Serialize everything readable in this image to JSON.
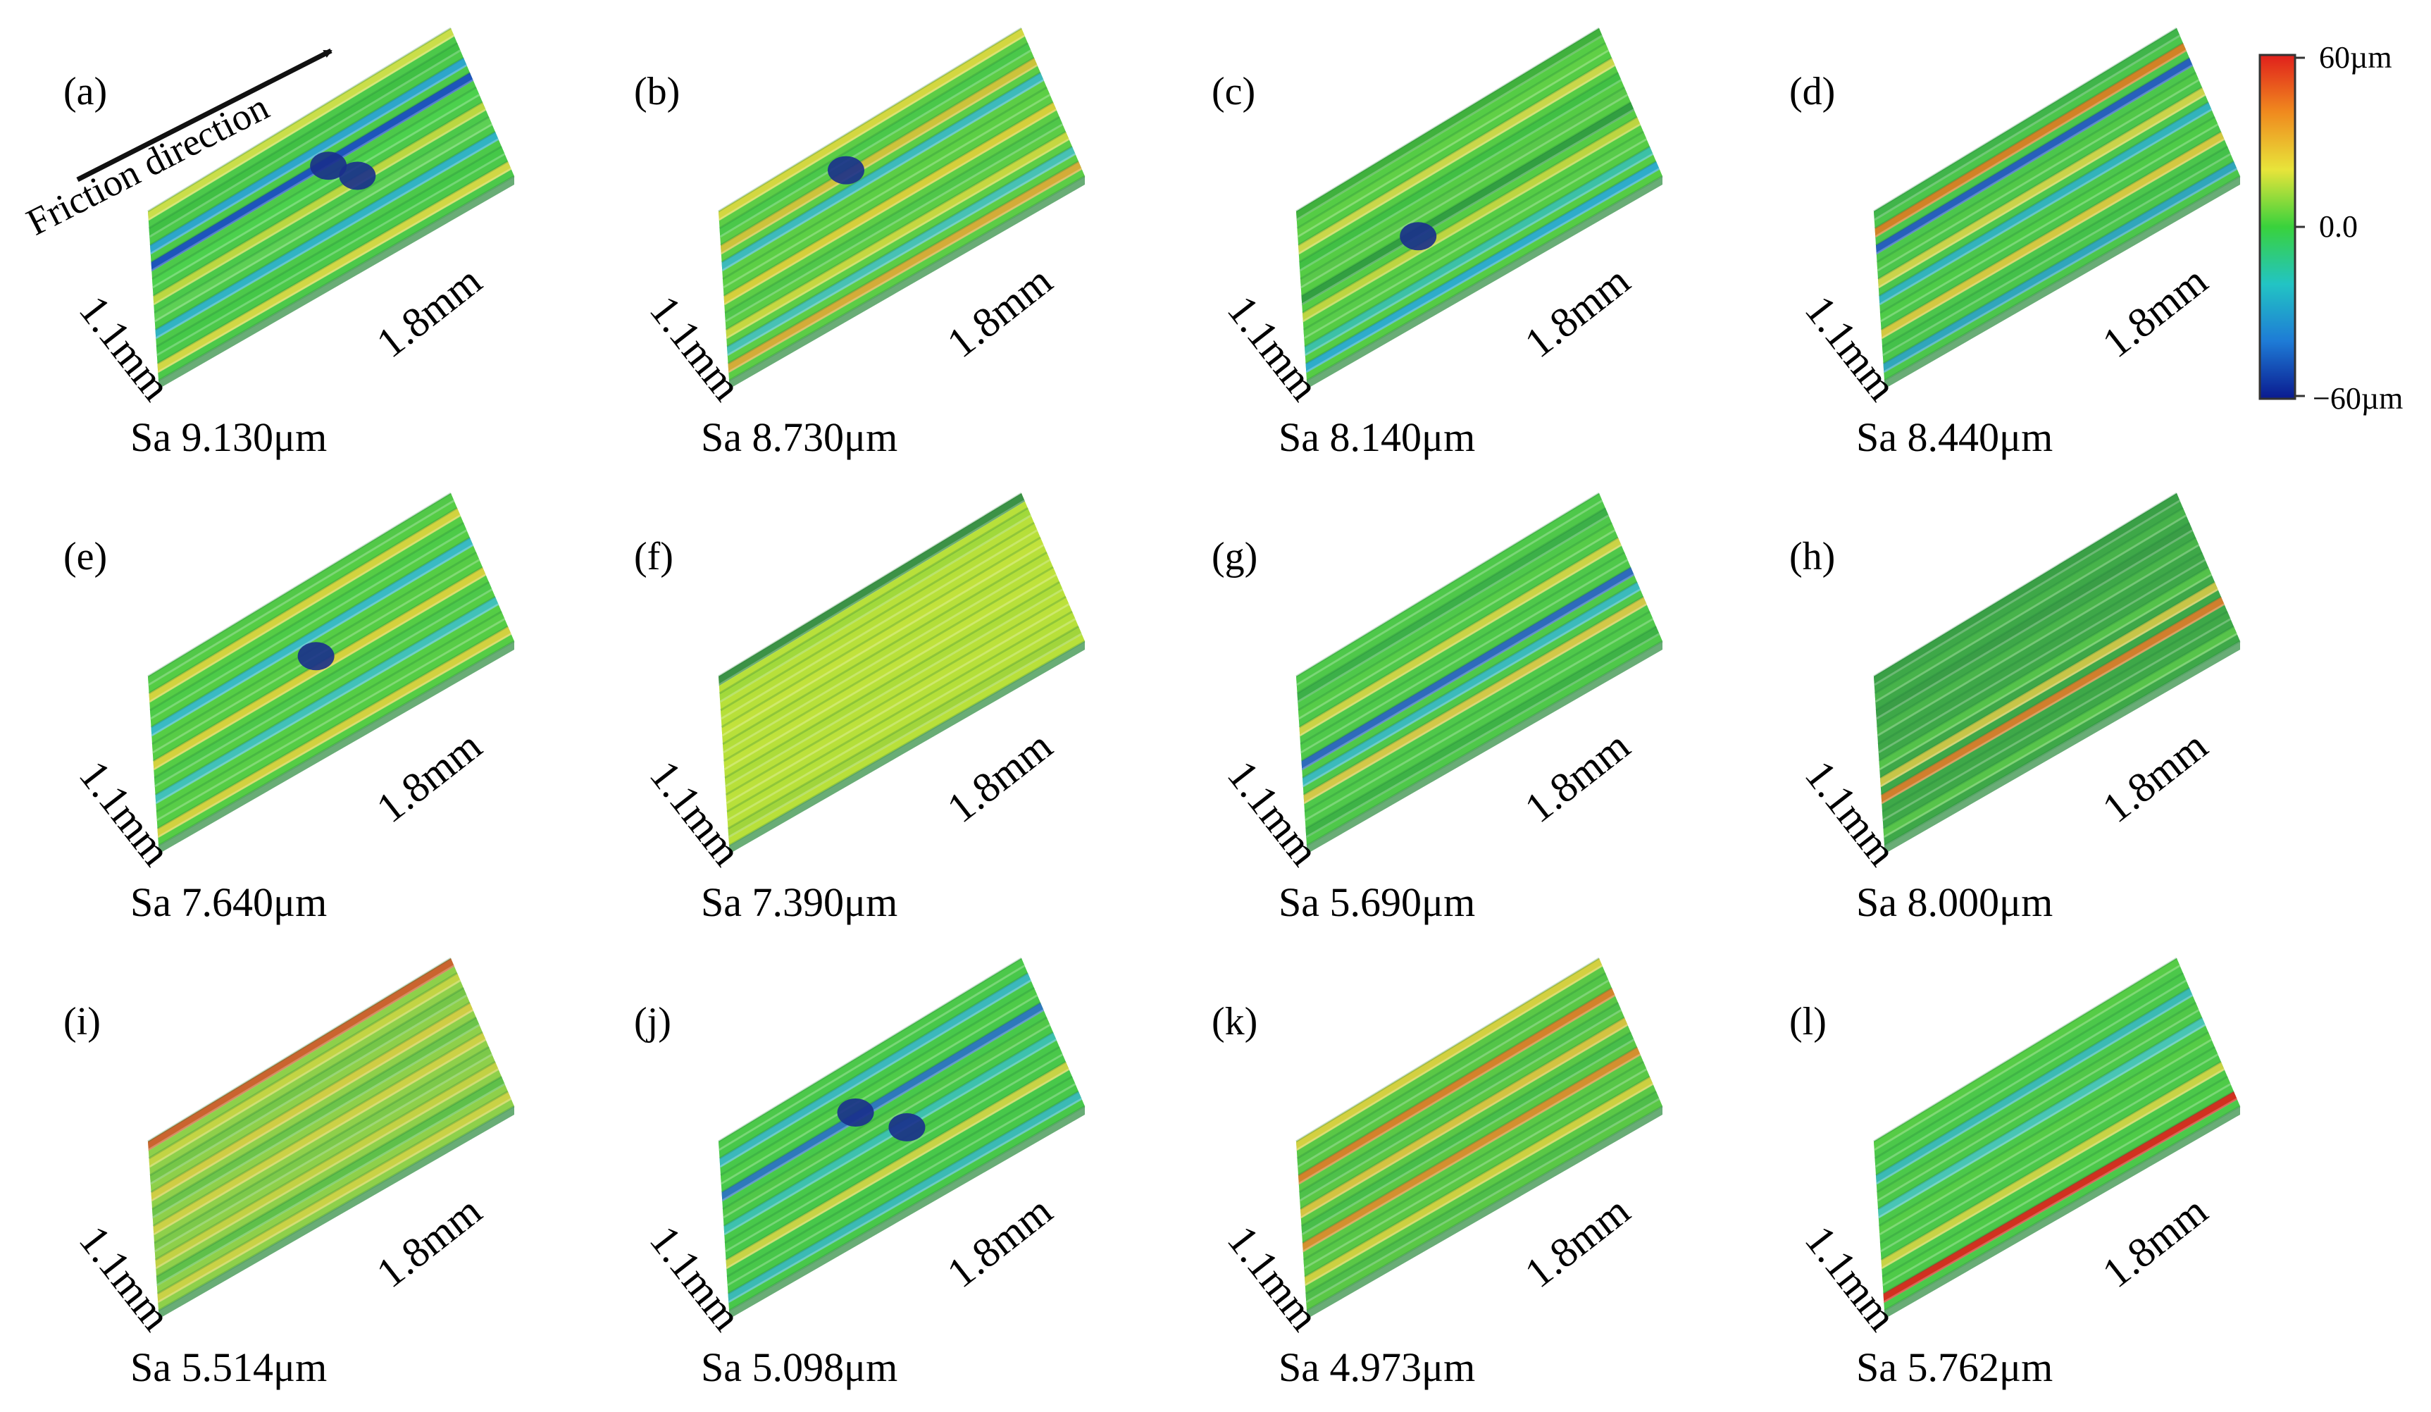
{
  "figure": {
    "friction_label": "Friction direction",
    "colorbar": {
      "max_label": "60µm",
      "mid_label": "0.0",
      "min_label": "−60µm",
      "stops": [
        "#0a1a8f",
        "#1e7bd6",
        "#22c4c4",
        "#39d23c",
        "#e8e43a",
        "#f08a1e",
        "#e0201c"
      ]
    },
    "panels": [
      {
        "id": "a",
        "label": "(a)",
        "width_label": "1.1mm",
        "length_label": "1.8mm",
        "sa": "Sa 9.130μm",
        "base": "#4cc94a",
        "stripes": [
          "#d8e04a",
          "#3fbf44",
          "#2aa2d8",
          "#1848c8",
          "#4cd24e",
          "#c8d840",
          "#5fd055",
          "#2fb0d0",
          "#45c848",
          "#e0d845"
        ],
        "defects": [
          [
            0.55,
            0.35
          ],
          [
            0.62,
            0.5
          ]
        ]
      },
      {
        "id": "b",
        "label": "(b)",
        "width_label": "1.1mm",
        "length_label": "1.8mm",
        "sa": "Sa 8.730μm",
        "base": "#5ccd46",
        "stripes": [
          "#e0d840",
          "#48c84a",
          "#d8c23a",
          "#3ab8c8",
          "#5ccf45",
          "#e2cf3a",
          "#4fc64a",
          "#d0d840",
          "#45c0c0",
          "#e0a836"
        ],
        "defects": [
          [
            0.4,
            0.2
          ]
        ]
      },
      {
        "id": "c",
        "label": "(c)",
        "width_label": "1.1mm",
        "length_label": "1.8mm",
        "sa": "Sa 8.140μm",
        "base": "#55cc45",
        "stripes": [
          "#3eae3c",
          "#62d046",
          "#d6d84a",
          "#3fbf44",
          "#5ac84a",
          "#2f9a40",
          "#c9d640",
          "#59cc4a",
          "#3ac0b0",
          "#2aa8d8"
        ],
        "defects": [
          [
            0.35,
            0.55
          ]
        ]
      },
      {
        "id": "d",
        "label": "(d)",
        "width_label": "1.1mm",
        "length_label": "1.8mm",
        "sa": "Sa 8.440μm",
        "base": "#4cc64c",
        "stripes": [
          "#3fb34a",
          "#e07a22",
          "#2454c8",
          "#52c848",
          "#d8d44a",
          "#30b0c8",
          "#4fcb48",
          "#e2c840",
          "#44c04a",
          "#2ea2c8"
        ],
        "defects": []
      },
      {
        "id": "e",
        "label": "(e)",
        "width_label": "1.1mm",
        "length_label": "1.8mm",
        "sa": "Sa 7.640μm",
        "base": "#55cd45",
        "stripes": [
          "#52c848",
          "#e0d43e",
          "#4ccb48",
          "#36b8d0",
          "#58cc46",
          "#e2d13c",
          "#4cc84a",
          "#3fc0c4",
          "#59cd47",
          "#e0d23f"
        ],
        "defects": [
          [
            0.5,
            0.45
          ]
        ]
      },
      {
        "id": "f",
        "label": "(f)",
        "width_label": "1.1mm",
        "length_label": "1.8mm",
        "sa": "Sa 7.390μm",
        "base": "#b8e03a",
        "stripes": [
          "#2f8a48",
          "#9fd83c",
          "#b6df3a",
          "#c2e23c",
          "#b2de3a",
          "#c0e23c",
          "#acdc3a",
          "#bde13c",
          "#b4df3a",
          "#9ed43c"
        ],
        "defects": []
      },
      {
        "id": "g",
        "label": "(g)",
        "width_label": "1.1mm",
        "length_label": "1.8mm",
        "sa": "Sa 5.690μm",
        "base": "#4fc84a",
        "stripes": [
          "#4ec84a",
          "#3aad48",
          "#56cc48",
          "#d8d446",
          "#4fc94a",
          "#2a60c8",
          "#38b8c8",
          "#e0c848",
          "#4fc84a",
          "#3cb046"
        ],
        "defects": []
      },
      {
        "id": "h",
        "label": "(h)",
        "width_label": "1.1mm",
        "length_label": "1.8mm",
        "sa": "Sa 8.000μm",
        "base": "#3ea848",
        "stripes": [
          "#3a9e46",
          "#48b44a",
          "#3a9c46",
          "#4ab64a",
          "#3fa648",
          "#56c44a",
          "#d6c848",
          "#e07a2a",
          "#40a848",
          "#5ac64a"
        ],
        "defects": []
      },
      {
        "id": "i",
        "label": "(i)",
        "width_label": "1.1mm",
        "length_label": "1.8mm",
        "sa": "Sa 5.514μm",
        "base": "#8ed04a",
        "stripes": [
          "#d0582c",
          "#c8d444",
          "#72c448",
          "#d6cc44",
          "#68c24a",
          "#d2d046",
          "#7ac84a",
          "#c8d044",
          "#5abe4a",
          "#cfd246"
        ],
        "defects": []
      },
      {
        "id": "j",
        "label": "(j)",
        "width_label": "1.1mm",
        "length_label": "1.8mm",
        "sa": "Sa 5.098μm",
        "base": "#48c84a",
        "stripes": [
          "#4cc84a",
          "#3ab6c8",
          "#4fcb48",
          "#2b70c8",
          "#52c848",
          "#3cc0b8",
          "#4ac84a",
          "#d6d446",
          "#48c64a",
          "#3ab8c0"
        ],
        "defects": [
          [
            0.42,
            0.3
          ],
          [
            0.55,
            0.55
          ]
        ]
      },
      {
        "id": "k",
        "label": "(k)",
        "width_label": "1.1mm",
        "length_label": "1.8mm",
        "sa": "Sa 4.973μm",
        "base": "#5ac846",
        "stripes": [
          "#e0d040",
          "#52c448",
          "#e07a28",
          "#4cc04a",
          "#e0c240",
          "#46bc4a",
          "#e08a2c",
          "#56c648",
          "#d8d040",
          "#4ebd4a"
        ],
        "defects": []
      },
      {
        "id": "l",
        "label": "(l)",
        "width_label": "1.1mm",
        "length_label": "1.8mm",
        "sa": "Sa 5.762μm",
        "base": "#4cc84a",
        "stripes": [
          "#58cc46",
          "#4ac84a",
          "#3ab8c0",
          "#52c848",
          "#48c4c0",
          "#56cc46",
          "#4cc84a",
          "#d6d446",
          "#4fcb48",
          "#e0201c"
        ],
        "defects": []
      }
    ]
  }
}
